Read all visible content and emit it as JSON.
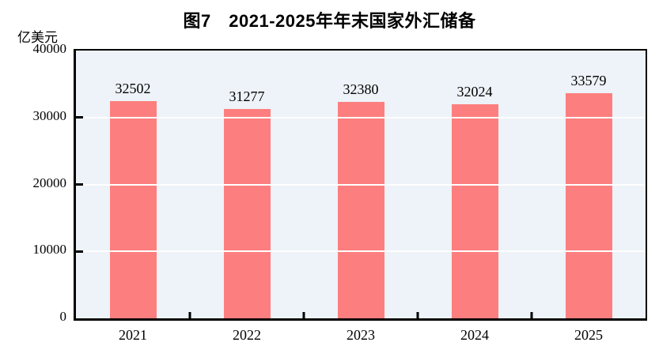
{
  "header": {
    "title": "图7　2021-2025年年末国家外汇储备",
    "y_unit": "亿美元"
  },
  "chart_data": {
    "type": "bar",
    "title": "图7 2021-2025年年末国家外汇储备",
    "categories": [
      "2021",
      "2022",
      "2023",
      "2024",
      "2025"
    ],
    "values": [
      32502,
      31277,
      32380,
      32024,
      33579
    ],
    "xlabel": "",
    "ylabel": "亿美元",
    "ylim": [
      0,
      40000
    ],
    "yticks": [
      0,
      10000,
      20000,
      30000,
      40000
    ],
    "grid": true,
    "legend_position": "none",
    "data_labels_shown": true,
    "colors": {
      "bar": "#FD7E7E",
      "plot_background": "#EDF3F8",
      "gridline": "#FFFFFF",
      "plot_border": "#000000",
      "text": "#000000"
    }
  }
}
